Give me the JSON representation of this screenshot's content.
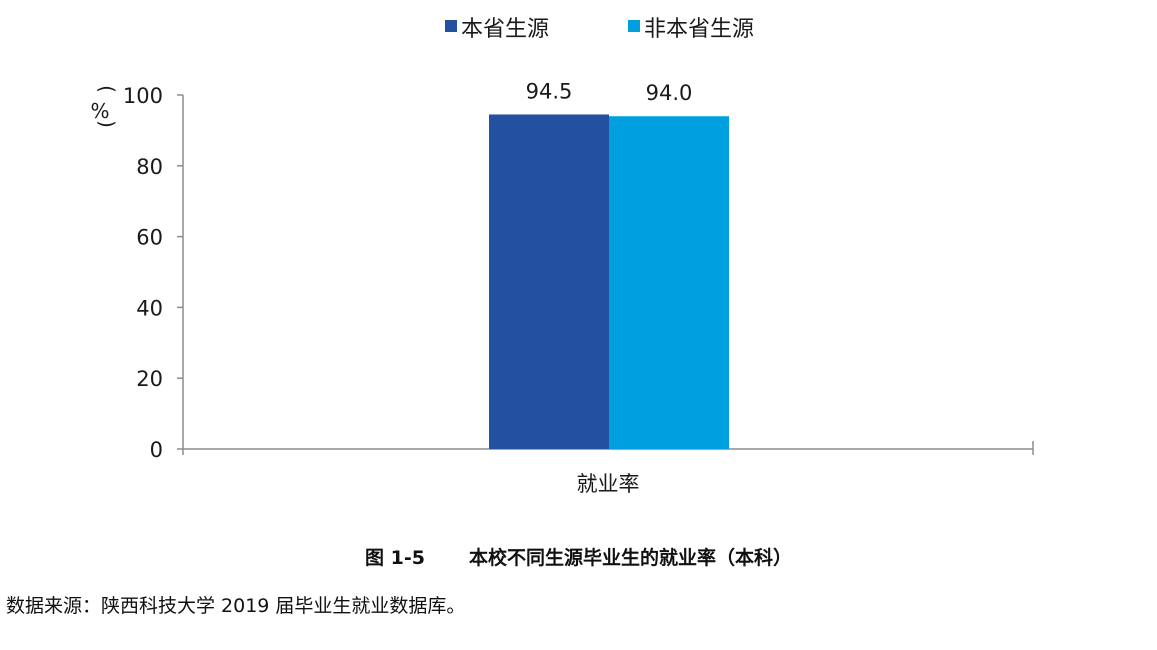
{
  "chart_data": {
    "type": "bar",
    "categories": [
      "就业率"
    ],
    "series": [
      {
        "name": "本省生源",
        "values": [
          94.5
        ],
        "color": "#2350a0"
      },
      {
        "name": "非本省生源",
        "values": [
          94.0
        ],
        "color": "#00a0e0"
      }
    ],
    "data_labels": [
      "94.5",
      "94.0"
    ],
    "ylabel": "%",
    "ylim": [
      0,
      100
    ],
    "yticks": [
      0,
      20,
      40,
      60,
      80,
      100
    ],
    "legend_position": "top-center",
    "grid": false
  },
  "caption": {
    "number": "图  1-5",
    "title": "本校不同生源毕业生的就业率（本科）"
  },
  "source_note": "数据来源：陕西科技大学 2019 届毕业生就业数据库。"
}
